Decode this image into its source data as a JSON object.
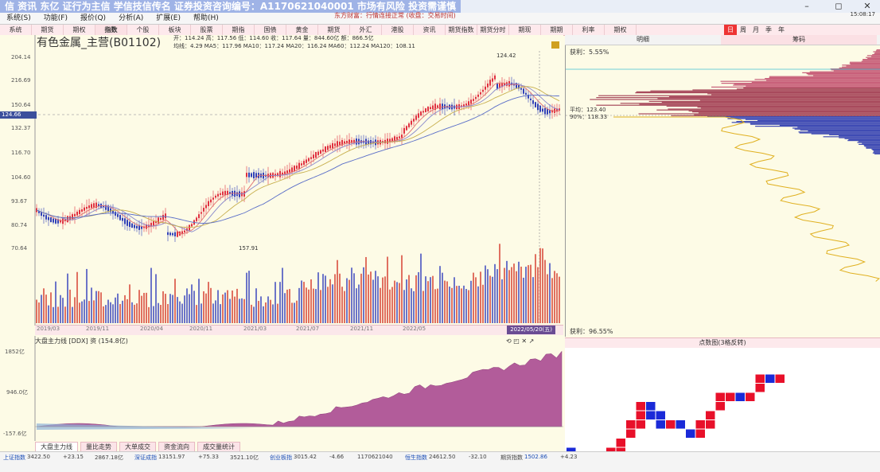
{
  "window": {
    "title": "信 资讯 东亿 证行为主信 学信技信传名 证券投资咨询编号：A1170621040001 市场有风险 投资需谨慎",
    "controls": [
      "–",
      "◻",
      "✕"
    ]
  },
  "menu": [
    "系统(S)",
    "功能(F)",
    "报价(Q)",
    "分析(A)",
    "扩展(E)",
    "帮助(H)"
  ],
  "tabs": [
    "系统",
    "期货",
    "期权",
    "指数",
    "个股",
    "板块",
    "股票",
    "期指",
    "国债",
    "黄金",
    "期货",
    "外汇",
    "港股",
    "资讯",
    "期货指数",
    "期货分时",
    "期现",
    "期期",
    "利率",
    "期权"
  ],
  "tabs_active_index": 3,
  "period": [
    "日",
    "周",
    "月",
    "季",
    "年"
  ],
  "period_active": "日",
  "chart_header": {
    "title": "有色金属_主营(B01102)",
    "ma_line1": "开：114.24 高：117.56 低：114.60 收：117.64 量：844.60亿 额：866.5亿",
    "ma_line2": "均线：4.29 MA5：117.96 MA10：117.24 MA20：116.24 MA60：112.24 MA120：108.11"
  },
  "y_axis": [
    "204.14",
    "216.69",
    "150.64",
    "132.37",
    "116.70",
    "104.60",
    "93.67",
    "80.74",
    "70.64"
  ],
  "price_tag": "124.66",
  "annotations": {
    "high": "124.42",
    "low": "157.91"
  },
  "dates": [
    "2019/03",
    "2019/11",
    "2020/04",
    "2020/11",
    "2021/03",
    "2021/07",
    "2021/11",
    "2022/05"
  ],
  "date_end": "2022/05/20(五)",
  "lower": {
    "title": "大盘主力线 [DDX] 资 (154.8亿)",
    "y_labels": [
      "1852亿",
      "946.0亿",
      "-157.6亿"
    ],
    "tabs": [
      "大盘主力线",
      "量比走势",
      "大单成交",
      "资金流向",
      "成交量统计"
    ]
  },
  "right": {
    "headers": [
      "明细",
      "筹码"
    ],
    "active_header": 1,
    "top_label": "获利：5.55%",
    "mid1": "平均：123.40",
    "mid2": "90%：118.33",
    "bottom_label": "获利：96.55%",
    "pnf_title": "点数图(3格反转)"
  },
  "status": {
    "items": [
      "上证指数",
      "3422.50",
      "+23.15",
      "2867.18亿",
      "深证成指",
      "13151.97",
      "+75.33",
      "3521.10亿",
      "创业板指",
      "3015.42",
      "-4.66",
      "1170621040",
      "恒生指数",
      "24612.50",
      "-32.10",
      "期货指数",
      "1502.86",
      "+4.23"
    ],
    "message": "东方财富：行情连接正常 (收盘：交易时间)",
    "time": "15:08:17"
  },
  "colors": {
    "up": "#e03040",
    "down": "#3040b8",
    "ma5": "#e07070",
    "ma10": "#8888cc",
    "ma20": "#c8b050",
    "ma60": "#5a6ec8",
    "area": "#b25c9a",
    "pnf_x": "#e8102a",
    "pnf_o": "#1a2ad8"
  }
}
